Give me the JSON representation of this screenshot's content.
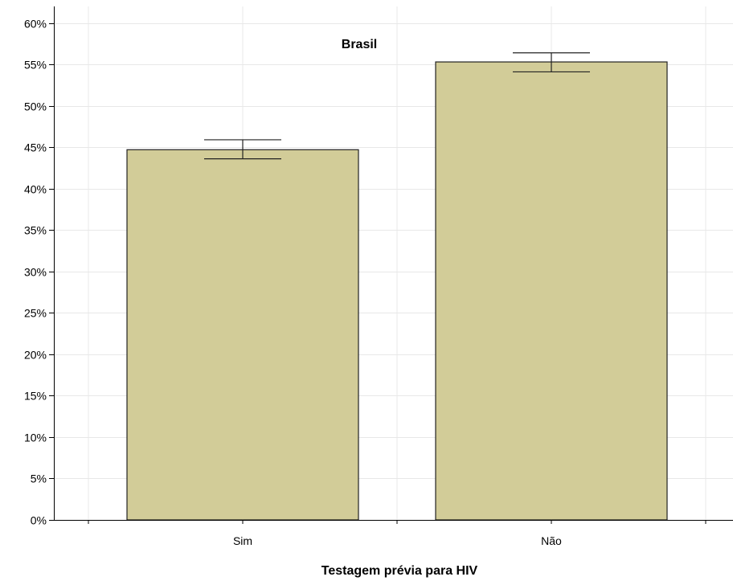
{
  "chart_data": {
    "type": "bar",
    "title": "Brasil",
    "xlabel": "Testagem prévia para HIV",
    "ylabel": "",
    "categories": [
      "Sim",
      "Não"
    ],
    "values": [
      44.7,
      55.3
    ],
    "error_low": [
      43.6,
      54.1
    ],
    "error_high": [
      45.9,
      56.4
    ],
    "ylim": [
      0,
      62
    ],
    "yticks": [
      0,
      5,
      10,
      15,
      20,
      25,
      30,
      35,
      40,
      45,
      50,
      55,
      60
    ],
    "ytick_labels": [
      "0%",
      "5%",
      "10%",
      "15%",
      "20%",
      "25%",
      "30%",
      "35%",
      "40%",
      "45%",
      "50%",
      "55%",
      "60%"
    ],
    "grid": true,
    "bar_color": "#d2cc98",
    "bar_edge_color": "#222222",
    "grid_color": "#e8e8e8"
  }
}
